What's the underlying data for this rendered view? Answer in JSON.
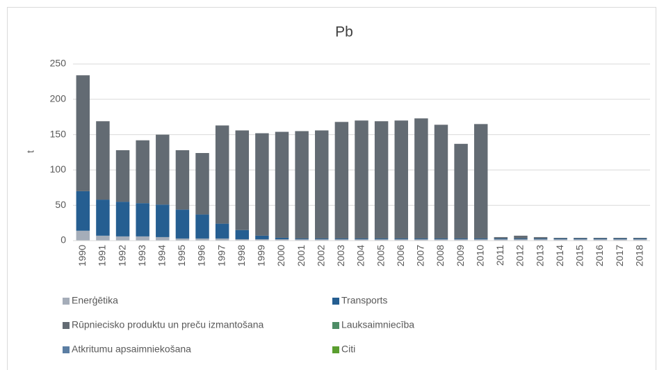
{
  "chart_data": {
    "type": "stacked_bar",
    "title": "Pb",
    "y_label": "t",
    "categories": [
      "1990",
      "1991",
      "1992",
      "1993",
      "1994",
      "1995",
      "1996",
      "1997",
      "1998",
      "1999",
      "2000",
      "2001",
      "2002",
      "2003",
      "2004",
      "2005",
      "2006",
      "2007",
      "2008",
      "2009",
      "2010",
      "2011",
      "2012",
      "2013",
      "2014",
      "2015",
      "2016",
      "2017",
      "2018"
    ],
    "series": [
      {
        "name": "Enerģētika",
        "color": "#a5adb9",
        "values": [
          14,
          7,
          6,
          6,
          5,
          3,
          3,
          3,
          2,
          2,
          2,
          2,
          2,
          2,
          2,
          2,
          2,
          2,
          2,
          2,
          2,
          2,
          2,
          2,
          2,
          2,
          2,
          2,
          2
        ]
      },
      {
        "name": "Transports",
        "color": "#255e91",
        "values": [
          56,
          51,
          49,
          47,
          46,
          41,
          34,
          21,
          13,
          5,
          2,
          1,
          1,
          1,
          1,
          1,
          1,
          1,
          1,
          1,
          1,
          1,
          1,
          1,
          1,
          1,
          1,
          1,
          1
        ]
      },
      {
        "name": "Rūpniecisko produktu un preču izmantošana",
        "color": "#636b73",
        "values": [
          164,
          111,
          73,
          89,
          99,
          84,
          87,
          139,
          141,
          145,
          150,
          152,
          153,
          165,
          167,
          166,
          167,
          170,
          161,
          134,
          162,
          2,
          4,
          2,
          1,
          1,
          1,
          1,
          1
        ]
      },
      {
        "name": "Lauksaimniecība",
        "color": "#4e8d66",
        "values": [
          0,
          0,
          0,
          0,
          0,
          0,
          0,
          0,
          0,
          0,
          0,
          0,
          0,
          0,
          0,
          0,
          0,
          0,
          0,
          0,
          0,
          0,
          0,
          0,
          0,
          0,
          0,
          0,
          0
        ]
      },
      {
        "name": "Atkritumu apsaimniekošana",
        "color": "#5b7ea3",
        "values": [
          0,
          0,
          0,
          0,
          0,
          0,
          0,
          0,
          0,
          0,
          0,
          0,
          0,
          0,
          0,
          0,
          0,
          0,
          0,
          0,
          0,
          0,
          0,
          0,
          0,
          0,
          0,
          0,
          0
        ]
      },
      {
        "name": "Citi",
        "color": "#5a9e2f",
        "values": [
          0,
          0,
          0,
          0,
          0,
          0,
          0,
          0,
          0,
          0,
          0,
          0,
          0,
          0,
          0,
          0,
          0,
          0,
          0,
          0,
          0,
          0,
          0,
          0,
          0,
          0,
          0,
          0,
          0
        ]
      }
    ],
    "ylim": [
      0,
      250
    ],
    "yticks": [
      0,
      50,
      100,
      150,
      200,
      250
    ],
    "grid": true
  }
}
